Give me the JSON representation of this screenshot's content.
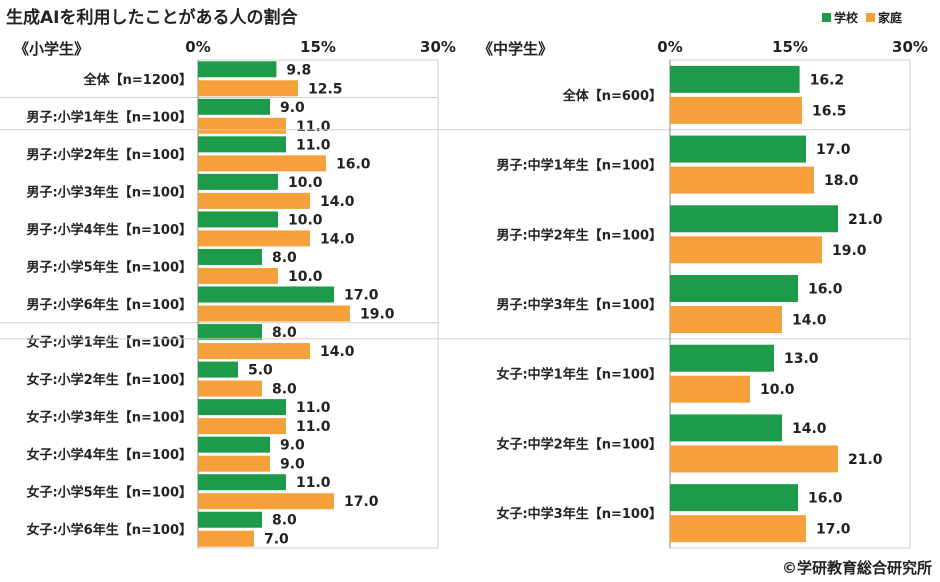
{
  "title": "生成AIを利用したことがある人の割合",
  "legend": [
    {
      "name": "学校",
      "color": "#1e9b48"
    },
    {
      "name": "家庭",
      "color": "#f6a03b"
    }
  ],
  "source": "©学研教育総合研究所",
  "chart_data": [
    {
      "type": "bar",
      "orientation": "horizontal",
      "title": "《小学生》",
      "xlim": [
        0,
        30
      ],
      "ticks": [
        "0%",
        "15%",
        "30%"
      ],
      "categories": [
        "全体【n=1200】",
        "男子:小学1年生【n=100】",
        "男子:小学2年生【n=100】",
        "男子:小学3年生【n=100】",
        "男子:小学4年生【n=100】",
        "男子:小学5年生【n=100】",
        "男子:小学6年生【n=100】",
        "女子:小学1年生【n=100】",
        "女子:小学2年生【n=100】",
        "女子:小学3年生【n=100】",
        "女子:小学4年生【n=100】",
        "女子:小学5年生【n=100】",
        "女子:小学6年生【n=100】"
      ],
      "series": [
        {
          "name": "学校",
          "values": [
            9.8,
            9.0,
            11.0,
            10.0,
            10.0,
            8.0,
            17.0,
            8.0,
            5.0,
            11.0,
            9.0,
            11.0,
            8.0
          ]
        },
        {
          "name": "家庭",
          "values": [
            12.5,
            11.0,
            16.0,
            14.0,
            14.0,
            10.0,
            19.0,
            14.0,
            8.0,
            11.0,
            9.0,
            17.0,
            7.0
          ]
        }
      ],
      "labels": [
        [
          "9.8",
          "9.0",
          "11.0",
          "10.0",
          "10.0",
          "8.0",
          "17.0",
          "8.0",
          "5.0",
          "11.0",
          "9.0",
          "11.0",
          "8.0"
        ],
        [
          "12.5",
          "11.0",
          "16.0",
          "14.0",
          "14.0",
          "10.0",
          "19.0",
          "14.0",
          "8.0",
          "11.0",
          "9.0",
          "17.0",
          "7.0"
        ]
      ]
    },
    {
      "type": "bar",
      "orientation": "horizontal",
      "title": "《中学生》",
      "xlim": [
        0,
        30
      ],
      "ticks": [
        "0%",
        "15%",
        "30%"
      ],
      "categories": [
        "全体【n=600】",
        "男子:中学1年生【n=100】",
        "男子:中学2年生【n=100】",
        "男子:中学3年生【n=100】",
        "女子:中学1年生【n=100】",
        "女子:中学2年生【n=100】",
        "女子:中学3年生【n=100】"
      ],
      "series": [
        {
          "name": "学校",
          "values": [
            16.2,
            17.0,
            21.0,
            16.0,
            13.0,
            14.0,
            16.0
          ]
        },
        {
          "name": "家庭",
          "values": [
            16.5,
            18.0,
            19.0,
            14.0,
            10.0,
            21.0,
            17.0
          ]
        }
      ],
      "labels": [
        [
          "16.2",
          "17.0",
          "21.0",
          "16.0",
          "13.0",
          "14.0",
          "16.0"
        ],
        [
          "16.5",
          "18.0",
          "19.0",
          "14.0",
          "10.0",
          "21.0",
          "17.0"
        ]
      ]
    }
  ]
}
